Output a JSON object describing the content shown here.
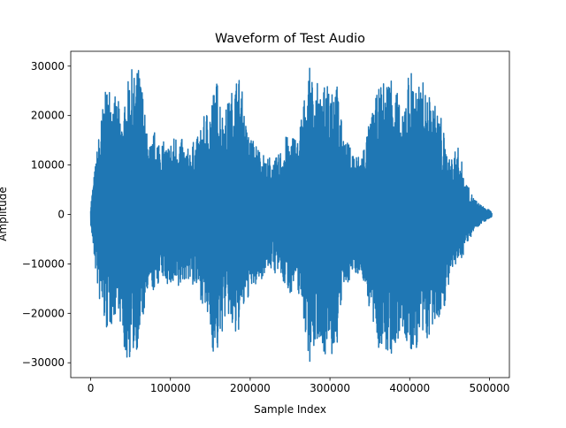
{
  "chart_data": {
    "type": "line",
    "title": "Waveform of Test Audio",
    "xlabel": "Sample Index",
    "ylabel": "Amplitude",
    "xlim": [
      -25000,
      525000
    ],
    "ylim": [
      -33000,
      33000
    ],
    "x_ticks": [
      {
        "value": 0,
        "label": "0"
      },
      {
        "value": 100000,
        "label": "100000"
      },
      {
        "value": 200000,
        "label": "200000"
      },
      {
        "value": 300000,
        "label": "300000"
      },
      {
        "value": 400000,
        "label": "400000"
      },
      {
        "value": 500000,
        "label": "500000"
      }
    ],
    "y_ticks": [
      {
        "value": -30000,
        "label": "−30000"
      },
      {
        "value": -20000,
        "label": "−20000"
      },
      {
        "value": -10000,
        "label": "−10000"
      },
      {
        "value": 0,
        "label": "0"
      },
      {
        "value": 10000,
        "label": "10000"
      },
      {
        "value": 20000,
        "label": "20000"
      },
      {
        "value": 30000,
        "label": "30000"
      }
    ],
    "grid": false,
    "series": [
      {
        "color": "#1f77b4",
        "envelope": {
          "x": [
            0,
            5000,
            10000,
            15000,
            20000,
            25000,
            30000,
            35000,
            40000,
            45000,
            50000,
            55000,
            60000,
            65000,
            70000,
            75000,
            80000,
            85000,
            90000,
            95000,
            100000,
            105000,
            110000,
            115000,
            120000,
            125000,
            130000,
            135000,
            140000,
            145000,
            150000,
            155000,
            160000,
            165000,
            170000,
            175000,
            180000,
            185000,
            190000,
            195000,
            200000,
            205000,
            210000,
            215000,
            220000,
            225000,
            230000,
            235000,
            240000,
            245000,
            250000,
            255000,
            260000,
            265000,
            270000,
            275000,
            280000,
            285000,
            290000,
            295000,
            300000,
            305000,
            310000,
            315000,
            320000,
            325000,
            330000,
            335000,
            340000,
            345000,
            350000,
            355000,
            360000,
            365000,
            370000,
            375000,
            380000,
            385000,
            390000,
            395000,
            400000,
            405000,
            410000,
            415000,
            420000,
            425000,
            430000,
            435000,
            440000,
            445000,
            450000,
            455000,
            460000,
            465000,
            470000,
            475000,
            480000,
            485000,
            490000,
            495000,
            500000,
            503000
          ],
          "max": [
            2000,
            9000,
            16000,
            22000,
            26000,
            27000,
            24000,
            23000,
            19000,
            25000,
            30000,
            28000,
            30000,
            26000,
            17000,
            14000,
            17000,
            16000,
            15000,
            14000,
            15000,
            16000,
            17000,
            15000,
            13000,
            14000,
            15000,
            16000,
            19000,
            21000,
            23000,
            26000,
            28000,
            21000,
            22000,
            24000,
            27000,
            29000,
            25000,
            18000,
            16000,
            15000,
            14000,
            13000,
            11000,
            12000,
            11000,
            12000,
            14000,
            16000,
            15000,
            17000,
            15000,
            22000,
            25000,
            30000,
            26000,
            27000,
            22000,
            29000,
            30000,
            28000,
            26000,
            18000,
            15000,
            14000,
            13000,
            12000,
            13000,
            16000,
            19000,
            22000,
            25000,
            27000,
            27000,
            29000,
            30000,
            25000,
            18000,
            27000,
            30000,
            29000,
            25000,
            28000,
            25000,
            24000,
            23000,
            21000,
            20000,
            14000,
            11000,
            13000,
            14000,
            11000,
            7000,
            5000,
            3500,
            2500,
            1800,
            1300,
            900,
            400
          ],
          "min": [
            -2000,
            -10000,
            -17000,
            -21000,
            -24000,
            -23000,
            -21000,
            -19000,
            -27000,
            -30000,
            -29000,
            -28000,
            -27000,
            -22000,
            -18000,
            -15000,
            -16000,
            -14000,
            -13000,
            -14000,
            -15000,
            -16000,
            -16000,
            -14000,
            -13000,
            -14000,
            -15000,
            -16000,
            -18000,
            -21000,
            -24000,
            -30000,
            -28000,
            -24000,
            -20000,
            -22000,
            -27000,
            -24000,
            -21000,
            -18000,
            -16000,
            -15000,
            -14000,
            -13000,
            -11000,
            -11000,
            -12000,
            -12000,
            -14000,
            -15000,
            -16000,
            -15000,
            -16000,
            -18000,
            -26000,
            -30000,
            -28000,
            -25000,
            -27000,
            -29000,
            -30000,
            -29000,
            -26000,
            -17000,
            -15000,
            -13000,
            -12000,
            -12000,
            -13000,
            -15000,
            -20000,
            -24000,
            -27000,
            -28000,
            -29000,
            -28000,
            -30000,
            -27000,
            -23000,
            -26000,
            -30000,
            -28000,
            -27000,
            -27000,
            -26000,
            -25000,
            -24000,
            -22000,
            -20000,
            -18000,
            -14000,
            -12000,
            -10000,
            -9000,
            -7000,
            -5000,
            -3500,
            -2500,
            -1800,
            -1300,
            -900,
            -400
          ]
        }
      }
    ]
  }
}
